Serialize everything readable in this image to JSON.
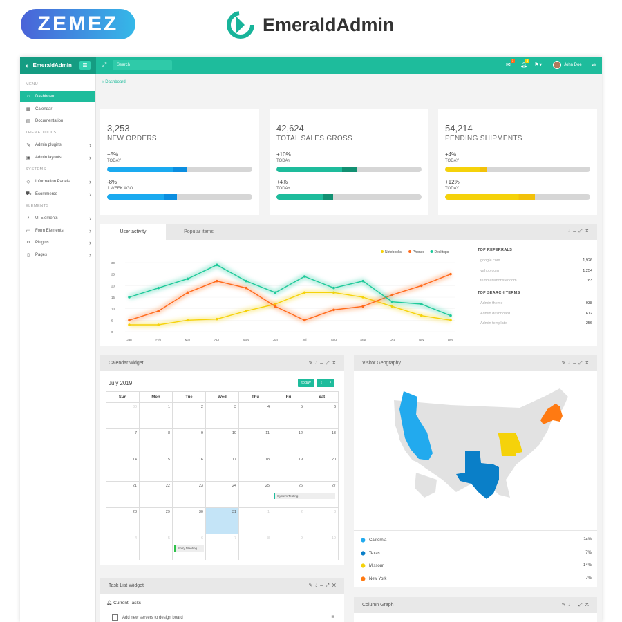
{
  "promo": {
    "brand": "ZEMEZ",
    "product": "EmeraldAdmin"
  },
  "topbar": {
    "brand": "EmeraldAdmin",
    "search_placeholder": "Search",
    "user": "John Doe",
    "notif_badge_1": "3",
    "notif_badge_2": "4"
  },
  "sidebar": {
    "sections": [
      "MENU",
      "THEME TOOLS",
      "SYSTEMS",
      "ELEMENTS"
    ],
    "items": [
      {
        "label": "Dashboard",
        "icon": "home-icon",
        "active": true
      },
      {
        "label": "Calendar",
        "icon": "calendar-icon"
      },
      {
        "label": "Documentation",
        "icon": "book-icon"
      },
      {
        "label": "Admin plugins",
        "icon": "brush-icon"
      },
      {
        "label": "Admin layouts",
        "icon": "layout-icon"
      },
      {
        "label": "Information Panels",
        "icon": "diamond-icon"
      },
      {
        "label": "Ecommerce",
        "icon": "cart-icon"
      },
      {
        "label": "UI Elements",
        "icon": "bell-icon"
      },
      {
        "label": "Form Elements",
        "icon": "form-icon"
      },
      {
        "label": "Plugins",
        "icon": "code-icon"
      },
      {
        "label": "Pages",
        "icon": "page-icon"
      }
    ]
  },
  "breadcrumb": "Dashboard",
  "stats": [
    {
      "value": "3,253",
      "caption": "NEW ORDERS",
      "color": "#1aaaf0",
      "color2": "#0b8ee0",
      "rows": [
        {
          "pct": "+5%",
          "period": "TODAY",
          "fill": 0.55
        },
        {
          "pct": "-8%",
          "period": "1 WEEK AGO",
          "fill": 0.48
        }
      ]
    },
    {
      "value": "42,624",
      "caption": "TOTAL SALES GROSS",
      "color": "#1ebc9c",
      "color2": "#129072",
      "rows": [
        {
          "pct": "+10%",
          "period": "TODAY",
          "fill": 0.55
        },
        {
          "pct": "+4%",
          "period": "TODAY",
          "fill": 0.39
        }
      ]
    },
    {
      "value": "54,214",
      "caption": "PENDING SHIPMENTS",
      "color": "#f5d20a",
      "color2": "#f2c10a",
      "rows": [
        {
          "pct": "+4%",
          "period": "TODAY",
          "fill": 0.29
        },
        {
          "pct": "+12%",
          "period": "TODAY",
          "fill": 0.62
        }
      ]
    }
  ],
  "activity": {
    "tabs": [
      "User activity",
      "Popular items"
    ],
    "top_referrals_title": "TOP REFERRALS",
    "referrals": [
      {
        "name": "google.com",
        "value": "1,926"
      },
      {
        "name": "yahoo.com",
        "value": "1,254"
      },
      {
        "name": "templatemonster.com",
        "value": "783"
      }
    ],
    "top_search_title": "TOP SEARCH TERMS",
    "search_terms": [
      {
        "name": "Admin theme",
        "value": "938"
      },
      {
        "name": "Admin dashboard",
        "value": "612"
      },
      {
        "name": "Admin template",
        "value": "256"
      }
    ]
  },
  "chart_data": {
    "type": "line",
    "categories": [
      "Jan",
      "Feb",
      "Mar",
      "Apr",
      "May",
      "Jun",
      "Jul",
      "Aug",
      "Sep",
      "Oct",
      "Nov",
      "Dec"
    ],
    "ylim": [
      0,
      30
    ],
    "yticks": [
      0,
      5,
      10,
      15,
      20,
      25,
      30
    ],
    "legend_position": "top-right",
    "series": [
      {
        "name": "Notebooks",
        "color": "#f5d20a",
        "values": [
          3,
          3,
          5,
          5.5,
          9,
          12,
          17,
          17,
          15,
          11,
          7,
          5
        ]
      },
      {
        "name": "Phones",
        "color": "#ff6a1a",
        "values": [
          5,
          9,
          17,
          22,
          19,
          11,
          5,
          9.5,
          11,
          16,
          20,
          25
        ]
      },
      {
        "name": "Desktops",
        "color": "#1ec99a",
        "values": [
          15,
          19,
          23,
          29,
          22,
          17,
          24,
          19,
          22,
          13,
          12,
          7
        ]
      }
    ]
  },
  "calendar": {
    "title": "Calendar widget",
    "month": "July 2019",
    "today_label": "today",
    "days": [
      "Sun",
      "Mon",
      "Tue",
      "Wed",
      "Thu",
      "Fri",
      "Sat"
    ],
    "weeks": [
      [
        "30",
        "1",
        "2",
        "3",
        "4",
        "5",
        "6"
      ],
      [
        "7",
        "8",
        "9",
        "10",
        "11",
        "12",
        "13"
      ],
      [
        "14",
        "15",
        "16",
        "17",
        "18",
        "19",
        "20"
      ],
      [
        "21",
        "22",
        "23",
        "24",
        "25",
        "26",
        "27"
      ],
      [
        "28",
        "29",
        "30",
        "31",
        "1",
        "2",
        "3"
      ],
      [
        "4",
        "5",
        "6",
        "7",
        "8",
        "9",
        "10"
      ]
    ],
    "event_1": "System Testing",
    "event_2": "Sorry Meeting"
  },
  "geography": {
    "title": "Visitor Geography",
    "states": [
      {
        "name": "California",
        "value": "24%",
        "color": "#22aaee"
      },
      {
        "name": "Texas",
        "value": "7%",
        "color": "#0a7fc8"
      },
      {
        "name": "Missouri",
        "value": "14%",
        "color": "#f5d20a"
      },
      {
        "name": "New York",
        "value": "7%",
        "color": "#ff7a12"
      }
    ]
  },
  "tasks": {
    "title": "Task List Widget",
    "subtitle": "Current Tasks",
    "items": [
      "Add new servers to design board"
    ]
  },
  "column_graph": {
    "title": "Column Graph"
  }
}
